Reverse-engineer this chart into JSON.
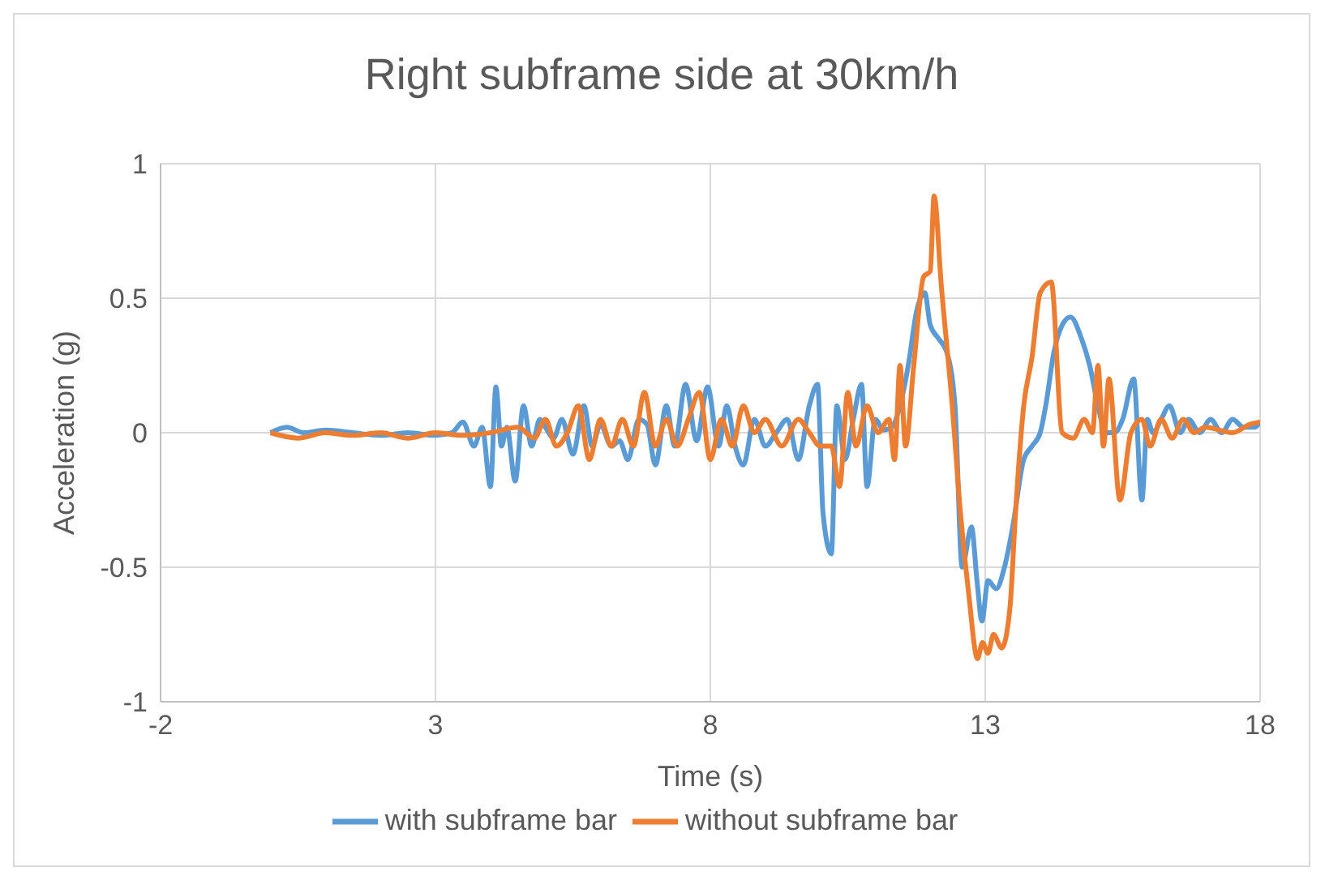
{
  "chart_data": {
    "type": "line",
    "title": "Right subframe side at 30km/h",
    "xlabel": "Time (s)",
    "ylabel": "Acceleration (g)",
    "xlim": [
      -2,
      18
    ],
    "xticks": [
      -2,
      3,
      8,
      13,
      18
    ],
    "ylim": [
      -1,
      1
    ],
    "yticks": [
      -1,
      -0.5,
      0,
      0.5,
      1
    ],
    "grid": true,
    "legend": "bottom",
    "marker": "none",
    "line_style": "solid",
    "series": [
      {
        "name": "with subframe bar",
        "color": "#5b9bd5",
        "x": [
          0,
          0.3,
          0.6,
          1,
          1.5,
          2,
          2.5,
          3,
          3.3,
          3.5,
          3.7,
          3.85,
          4.0,
          4.1,
          4.2,
          4.3,
          4.45,
          4.6,
          4.75,
          4.9,
          5.0,
          5.15,
          5.3,
          5.5,
          5.7,
          5.85,
          6.0,
          6.2,
          6.35,
          6.5,
          6.7,
          6.85,
          7.0,
          7.2,
          7.35,
          7.55,
          7.75,
          7.95,
          8.15,
          8.3,
          8.45,
          8.6,
          8.8,
          9.0,
          9.2,
          9.4,
          9.6,
          9.8,
          9.95,
          10.05,
          10.2,
          10.3,
          10.45,
          10.6,
          10.75,
          10.85,
          11.0,
          11.15,
          11.3,
          11.45,
          11.6,
          11.75,
          11.9,
          12.0,
          12.15,
          12.3,
          12.45,
          12.58,
          12.75,
          12.85,
          12.94,
          13.05,
          13.2,
          13.35,
          13.5,
          13.7,
          13.85,
          14.0,
          14.1,
          14.25,
          14.4,
          14.55,
          14.75,
          14.9,
          15.05,
          15.2,
          15.35,
          15.5,
          15.7,
          15.85,
          15.95,
          16.05,
          16.2,
          16.35,
          16.55,
          16.7,
          16.9,
          17.1,
          17.3,
          17.5,
          17.7,
          17.9,
          18
        ],
        "values": [
          0,
          0.02,
          0,
          0.01,
          0,
          -0.01,
          0,
          -0.01,
          0,
          0.04,
          -0.05,
          0.02,
          -0.2,
          0.17,
          -0.05,
          0.02,
          -0.18,
          0.1,
          -0.05,
          0.05,
          0.02,
          -0.02,
          0.05,
          -0.08,
          0.1,
          -0.05,
          0.03,
          -0.05,
          -0.03,
          -0.1,
          0.05,
          0.03,
          -0.12,
          0.1,
          -0.05,
          0.18,
          -0.03,
          0.17,
          -0.05,
          0.1,
          -0.05,
          -0.12,
          0.05,
          -0.05,
          0,
          0.05,
          -0.1,
          0.1,
          0.18,
          -0.3,
          -0.45,
          0.1,
          -0.1,
          0.05,
          0.18,
          -0.2,
          0.05,
          0.01,
          0.02,
          0.1,
          0.25,
          0.45,
          0.52,
          0.4,
          0.35,
          0.3,
          0.1,
          -0.5,
          -0.35,
          -0.55,
          -0.7,
          -0.55,
          -0.58,
          -0.5,
          -0.35,
          -0.1,
          -0.05,
          0,
          0.1,
          0.3,
          0.4,
          0.43,
          0.35,
          0.25,
          0.1,
          0,
          0,
          0.05,
          0.2,
          -0.25,
          0.05,
          0,
          0.05,
          0.1,
          0,
          0.05,
          0,
          0.05,
          0,
          0.05,
          0.02,
          0.02,
          0.04
        ]
      },
      {
        "name": "without subframe bar",
        "color": "#ed7d31",
        "x": [
          0,
          0.5,
          1,
          1.5,
          2,
          2.5,
          3,
          3.5,
          4,
          4.5,
          4.8,
          5.0,
          5.2,
          5.4,
          5.6,
          5.8,
          6.0,
          6.2,
          6.4,
          6.6,
          6.8,
          7.0,
          7.2,
          7.4,
          7.6,
          7.8,
          8.0,
          8.2,
          8.4,
          8.6,
          8.8,
          9.0,
          9.3,
          9.6,
          9.8,
          10.0,
          10.2,
          10.35,
          10.5,
          10.65,
          10.85,
          11.05,
          11.25,
          11.35,
          11.45,
          11.55,
          11.7,
          11.88,
          12.0,
          12.07,
          12.2,
          12.4,
          12.55,
          12.7,
          12.86,
          12.95,
          13.05,
          13.15,
          13.3,
          13.45,
          13.55,
          13.7,
          13.85,
          14.0,
          14.2,
          14.4,
          14.6,
          14.8,
          14.95,
          15.05,
          15.15,
          15.25,
          15.45,
          15.65,
          15.85,
          16.0,
          16.2,
          16.4,
          16.6,
          16.8,
          17.0,
          17.5,
          17.8,
          18
        ],
        "values": [
          0,
          -0.02,
          0,
          -0.01,
          0,
          -0.02,
          0,
          -0.01,
          0,
          0.02,
          -0.02,
          0.05,
          -0.05,
          0,
          0.1,
          -0.1,
          0.05,
          -0.05,
          0.05,
          -0.05,
          0.15,
          -0.05,
          0.05,
          -0.05,
          0.05,
          0.15,
          -0.1,
          0.05,
          -0.05,
          0.1,
          0,
          0.05,
          -0.05,
          0.05,
          0,
          -0.05,
          -0.05,
          -0.2,
          0.15,
          -0.05,
          0.1,
          0,
          0.05,
          -0.1,
          0.25,
          -0.05,
          0.25,
          0.58,
          0.6,
          0.88,
          0.55,
          0.1,
          -0.3,
          -0.6,
          -0.84,
          -0.78,
          -0.82,
          -0.75,
          -0.8,
          -0.65,
          -0.3,
          0.1,
          0.28,
          0.52,
          0.56,
          0,
          -0.02,
          0.05,
          0,
          0.25,
          -0.05,
          0.2,
          -0.25,
          0,
          0.05,
          -0.05,
          0.05,
          -0.02,
          0.05,
          0,
          0.02,
          0,
          0.03,
          0.04
        ]
      }
    ]
  }
}
